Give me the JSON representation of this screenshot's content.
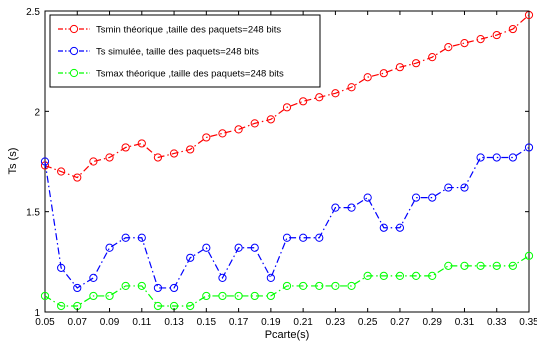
{
  "chart_data": {
    "type": "line",
    "xlabel": "Pcarte(s)",
    "ylabel": "Ts (s)",
    "xlim": [
      0.05,
      0.35
    ],
    "ylim": [
      1,
      2.5
    ],
    "x_ticks": [
      "0.05",
      "0.07",
      "0.09",
      "0.11",
      "0.13",
      "0.15",
      "0.17",
      "0.19",
      "0.21",
      "0.23",
      "0.25",
      "0.27",
      "0.29",
      "0.31",
      "0.33",
      "0.35"
    ],
    "y_ticks": [
      "1",
      "1.5",
      "2",
      "2.5"
    ],
    "grid": false,
    "legend_position": "top-left",
    "x": [
      0.05,
      0.06,
      0.07,
      0.08,
      0.09,
      0.1,
      0.11,
      0.12,
      0.13,
      0.14,
      0.15,
      0.16,
      0.17,
      0.18,
      0.19,
      0.2,
      0.21,
      0.22,
      0.23,
      0.24,
      0.25,
      0.26,
      0.27,
      0.28,
      0.29,
      0.3,
      0.31,
      0.32,
      0.33,
      0.34,
      0.35
    ],
    "series": [
      {
        "name": "Tsmin théorique ,taille des paquets=248 bits",
        "color": "#ff0000",
        "values": [
          1.73,
          1.7,
          1.67,
          1.75,
          1.77,
          1.82,
          1.84,
          1.77,
          1.79,
          1.81,
          1.87,
          1.89,
          1.91,
          1.94,
          1.96,
          2.02,
          2.05,
          2.07,
          2.09,
          2.12,
          2.17,
          2.19,
          2.22,
          2.24,
          2.27,
          2.32,
          2.34,
          2.36,
          2.38,
          2.41,
          2.48
        ]
      },
      {
        "name": "Ts simulée, taille des paquets=248 bits",
        "color": "#0000ff",
        "values": [
          1.75,
          1.22,
          1.12,
          1.17,
          1.32,
          1.37,
          1.37,
          1.12,
          1.12,
          1.27,
          1.32,
          1.17,
          1.32,
          1.32,
          1.17,
          1.37,
          1.37,
          1.37,
          1.52,
          1.52,
          1.57,
          1.42,
          1.42,
          1.57,
          1.57,
          1.62,
          1.62,
          1.77,
          1.77,
          1.77,
          1.82
        ]
      },
      {
        "name": "Tsmax théorique ,taille des paquets=248 bits",
        "color": "#00ff00",
        "values": [
          1.08,
          1.03,
          1.03,
          1.08,
          1.08,
          1.13,
          1.13,
          1.03,
          1.03,
          1.03,
          1.08,
          1.08,
          1.08,
          1.08,
          1.08,
          1.13,
          1.13,
          1.13,
          1.13,
          1.13,
          1.18,
          1.18,
          1.18,
          1.18,
          1.18,
          1.23,
          1.23,
          1.23,
          1.23,
          1.23,
          1.28
        ]
      }
    ]
  }
}
